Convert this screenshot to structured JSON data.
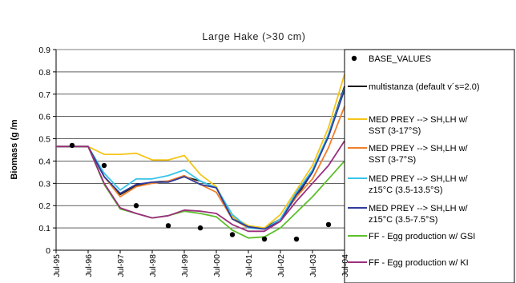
{
  "chart_data": {
    "type": "line",
    "title": "Large Hake (>30 cm)",
    "ylabel": "Biomass (g /m",
    "xlabel": "",
    "ylim": [
      0,
      0.9
    ],
    "yticks": [
      "0",
      "0.1",
      "0.2",
      "0.3",
      "0.4",
      "0.5",
      "0.6",
      "0.7",
      "0.8",
      "0.9"
    ],
    "x_tick_labels": [
      "Jul-95",
      "Jul-96",
      "Jul-97",
      "Jul-98",
      "Jul-99",
      "Jul-00",
      "Jul-01",
      "Jul-02",
      "Jul-03",
      "Jul-04"
    ],
    "x": [
      1995.5,
      1996.0,
      1996.5,
      1997.0,
      1997.5,
      1998.0,
      1998.5,
      1999.0,
      1999.5,
      2000.0,
      2000.5,
      2001.0,
      2001.5,
      2002.0,
      2002.5,
      2003.0,
      2003.5,
      2004.0,
      2004.5
    ],
    "grid": "horizontal",
    "legend_position": "right",
    "scatter": {
      "name": "BASE_VALUES",
      "color": "#000000",
      "x": [
        1996.0,
        1997.0,
        1998.0,
        1999.0,
        2000.0,
        2001.0,
        2002.0,
        2003.0,
        2004.0
      ],
      "y": [
        0.47,
        0.38,
        0.2,
        0.11,
        0.1,
        0.07,
        0.05,
        0.05,
        0.115
      ]
    },
    "series": [
      {
        "name": "multistanza  (default v´s=2.0)",
        "color": "#1a1a1a",
        "values": [
          0.465,
          0.465,
          0.465,
          0.33,
          0.25,
          0.29,
          0.305,
          0.31,
          0.33,
          0.31,
          0.28,
          0.15,
          0.105,
          0.1,
          0.14,
          0.24,
          0.35,
          0.52,
          0.735
        ]
      },
      {
        "name": "MED PREY --> SH,LH w/ SST (3-17°S)",
        "color": "#f5c518",
        "values": [
          0.465,
          0.465,
          0.465,
          0.43,
          0.43,
          0.435,
          0.405,
          0.405,
          0.425,
          0.34,
          0.285,
          0.15,
          0.11,
          0.1,
          0.16,
          0.27,
          0.38,
          0.55,
          0.79
        ]
      },
      {
        "name": "MED PREY --> SH,LH w/ SST (3-7°S)",
        "color": "#f07f2a",
        "values": [
          0.465,
          0.465,
          0.465,
          0.33,
          0.24,
          0.285,
          0.3,
          0.31,
          0.335,
          0.295,
          0.26,
          0.14,
          0.1,
          0.095,
          0.14,
          0.24,
          0.32,
          0.46,
          0.645
        ]
      },
      {
        "name": "MED PREY --> SH,LH w/ z15°C (3.5-13.5°S)",
        "color": "#38c4e8",
        "values": [
          0.465,
          0.465,
          0.465,
          0.345,
          0.27,
          0.32,
          0.32,
          0.335,
          0.36,
          0.31,
          0.28,
          0.16,
          0.1,
          0.095,
          0.14,
          0.26,
          0.36,
          0.52,
          0.725
        ]
      },
      {
        "name": "MED PREY --> SH,LH w/ z15°C (3.5-7.5°S)",
        "color": "#2e3b9c",
        "values": [
          0.465,
          0.465,
          0.465,
          0.33,
          0.255,
          0.295,
          0.305,
          0.305,
          0.33,
          0.295,
          0.28,
          0.14,
          0.105,
          0.095,
          0.13,
          0.25,
          0.35,
          0.51,
          0.72
        ]
      },
      {
        "name": "FF - Egg production w/ GSI",
        "color": "#5cbf2a",
        "values": [
          0.465,
          0.465,
          0.465,
          0.295,
          0.185,
          0.165,
          0.145,
          0.155,
          0.175,
          0.165,
          0.15,
          0.09,
          0.055,
          0.06,
          0.1,
          0.17,
          0.24,
          0.32,
          0.4
        ]
      },
      {
        "name": "FF - Egg production w/ KI",
        "color": "#9b2f7e",
        "values": [
          0.465,
          0.465,
          0.465,
          0.3,
          0.19,
          0.165,
          0.145,
          0.155,
          0.18,
          0.175,
          0.165,
          0.115,
          0.085,
          0.085,
          0.13,
          0.22,
          0.3,
          0.38,
          0.49
        ]
      }
    ]
  },
  "legend": {
    "base": "BASE_VALUES",
    "items": [
      [
        "multistanza  (default v´s=2.0)"
      ],
      [
        "MED PREY --> SH,LH w/",
        "SST (3-17°S)"
      ],
      [
        "MED PREY --> SH,LH w/",
        "SST (3-7°S)"
      ],
      [
        "MED PREY --> SH,LH w/",
        "z15°C (3.5-13.5°S)"
      ],
      [
        "MED PREY --> SH,LH w/",
        "z15°C (3.5-7.5°S)"
      ],
      [
        "FF - Egg production w/ GSI"
      ],
      [
        "FF - Egg production w/ KI"
      ]
    ]
  }
}
